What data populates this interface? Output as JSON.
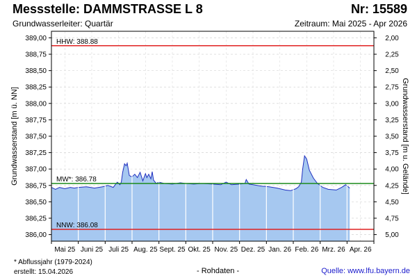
{
  "header": {
    "title": "Messstelle: DAMMSTRASSE L 8",
    "number": "Nr: 15589",
    "aquifer": "Grundwasserleiter: Quartär",
    "period": "Zeitraum: Mai 2025 - Apr 2026"
  },
  "footer": {
    "footnote": "* Abflussjahr (1979-2024)",
    "created": "erstellt:  15.04.2026",
    "rawdata": "- Rohdaten -",
    "source": "Quelle: www.lfu.bayern.de"
  },
  "colors": {
    "fill": "#a6c8f0",
    "line": "#1f2fbf",
    "hhw": "#e02020",
    "nnw": "#e02020",
    "mw": "#1a8a1a"
  },
  "chart_data": {
    "type": "area",
    "xlabel": "",
    "ylabel": "Grundwasserstand [m ü. NN]",
    "ylabel_right": "Grundwasserstand [m u. Gelände]",
    "ylim": [
      385.9,
      389.1
    ],
    "yticks": [
      "386,00",
      "386,25",
      "386,50",
      "386,75",
      "387,00",
      "387,25",
      "387,50",
      "387,75",
      "388,00",
      "388,25",
      "388,50",
      "388,75",
      "389,00"
    ],
    "yticks_right": [
      "2,00",
      "2,25",
      "2,50",
      "2,75",
      "3,00",
      "3,25",
      "3,50",
      "3,75",
      "4,00",
      "4,25",
      "4,50",
      "4,75",
      "5,00"
    ],
    "xticks": [
      "Mai 25",
      "Juni 25",
      "Juli 25",
      "Aug. 25",
      "Sept. 25",
      "Okt. 25",
      "Nov. 25",
      "Dez. 25",
      "Jan. 26",
      "Feb. 26",
      "Mrz. 26",
      "Apr. 26"
    ],
    "grid": true,
    "reference_lines": [
      {
        "label": "HHW: 388.88",
        "value": 388.88,
        "color_key": "hhw"
      },
      {
        "label": "MW*: 386.78",
        "value": 386.78,
        "color_key": "mw"
      },
      {
        "label": "NNW: 386.08",
        "value": 386.08,
        "color_key": "nnw"
      }
    ],
    "series": [
      {
        "x": [
          0,
          0.15,
          0.3,
          0.5,
          0.7,
          0.85,
          1.0,
          1.3,
          1.6,
          1.9,
          2.1,
          2.3,
          2.45,
          2.55,
          2.6,
          2.65,
          2.72,
          2.78,
          2.82,
          2.9,
          3.0,
          3.1,
          3.2,
          3.3,
          3.4,
          3.5,
          3.55,
          3.62,
          3.7,
          3.75,
          3.8,
          3.9,
          4.0,
          4.2,
          4.5,
          4.8,
          5.0,
          5.3,
          5.6,
          6.0,
          6.3,
          6.5,
          6.7,
          7.0,
          7.2,
          7.25,
          7.35,
          7.5,
          7.8,
          8.1,
          8.4,
          8.7,
          8.9,
          9.1,
          9.2,
          9.3,
          9.35,
          9.42,
          9.5,
          9.6,
          9.75,
          9.9,
          10.1,
          10.3,
          10.6,
          10.8,
          10.95,
          11.1
        ],
        "values": [
          386.72,
          386.69,
          386.72,
          386.7,
          386.72,
          386.71,
          386.72,
          386.73,
          386.71,
          386.73,
          386.75,
          386.72,
          386.8,
          386.76,
          386.8,
          386.95,
          387.08,
          387.05,
          387.09,
          386.9,
          386.88,
          386.92,
          386.87,
          386.95,
          386.82,
          386.93,
          386.87,
          386.92,
          386.85,
          386.96,
          386.83,
          386.78,
          386.8,
          386.78,
          386.77,
          386.79,
          386.78,
          386.77,
          386.78,
          386.77,
          386.76,
          386.8,
          386.76,
          386.77,
          386.78,
          386.84,
          386.77,
          386.76,
          386.74,
          386.73,
          386.71,
          386.68,
          386.67,
          386.7,
          386.73,
          386.8,
          387.0,
          387.2,
          387.15,
          386.98,
          386.86,
          386.78,
          386.72,
          386.69,
          386.68,
          386.72,
          386.76,
          386.71
        ]
      }
    ]
  }
}
